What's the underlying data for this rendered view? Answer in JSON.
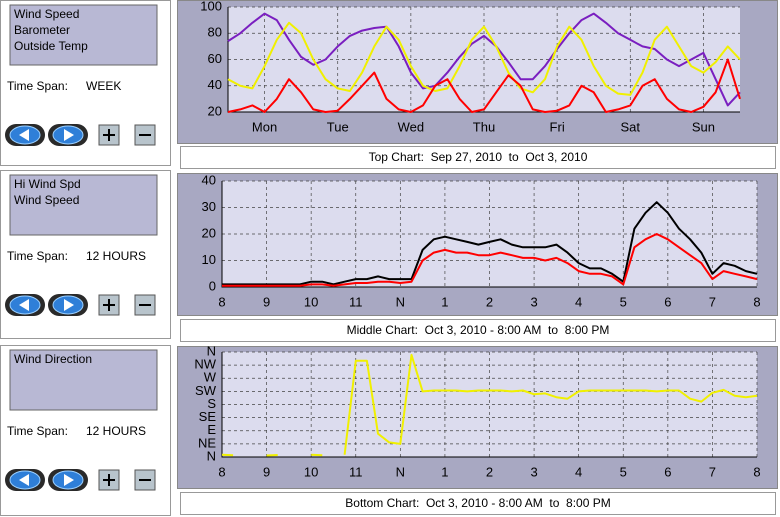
{
  "panels": [
    {
      "items": [
        "Wind Speed",
        "Barometer",
        "Outside Temp"
      ],
      "time_span_label": "Time Span:",
      "time_span": "WEEK"
    },
    {
      "items": [
        "Hi Wind Spd",
        "Wind Speed"
      ],
      "time_span_label": "Time Span:",
      "time_span": "12 HOURS"
    },
    {
      "items": [
        "Wind Direction"
      ],
      "time_span_label": "Time Span:",
      "time_span": "12 HOURS"
    }
  ],
  "chart_data": [
    {
      "type": "line",
      "title": "Top Chart:  Sep 27, 2010  to  Oct 3, 2010",
      "x": [
        0,
        4,
        8,
        12,
        16,
        20,
        24,
        28,
        32,
        36,
        40,
        44,
        48,
        52,
        56,
        60,
        64,
        68,
        72,
        76,
        80,
        84,
        88,
        92,
        96,
        100,
        104,
        108,
        112,
        116,
        120,
        124,
        128,
        132,
        136,
        140,
        144,
        148,
        152,
        156,
        160,
        164,
        168
      ],
      "xlim": [
        0,
        168
      ],
      "xticks": [
        {
          "value": 12,
          "label": "Mon"
        },
        {
          "value": 36,
          "label": "Tue"
        },
        {
          "value": 60,
          "label": "Wed"
        },
        {
          "value": 84,
          "label": "Thu"
        },
        {
          "value": 108,
          "label": "Fri"
        },
        {
          "value": 132,
          "label": "Sat"
        },
        {
          "value": 156,
          "label": "Sun"
        }
      ],
      "ylim": [
        20,
        100
      ],
      "yticks": [
        20,
        40,
        60,
        80,
        100
      ],
      "grid": true,
      "series": [
        {
          "name": "Barometer",
          "color": "#7a1fc0",
          "values": [
            74,
            80,
            88,
            95,
            90,
            75,
            62,
            56,
            60,
            70,
            78,
            82,
            84,
            85,
            70,
            50,
            38,
            40,
            50,
            62,
            72,
            78,
            70,
            58,
            45,
            45,
            55,
            68,
            80,
            90,
            95,
            88,
            80,
            75,
            70,
            68,
            60,
            55,
            60,
            65,
            45,
            25,
            35
          ]
        },
        {
          "name": "Outside Temp",
          "color": "#f0f000",
          "values": [
            45,
            40,
            38,
            55,
            75,
            88,
            80,
            60,
            45,
            38,
            36,
            50,
            70,
            85,
            75,
            55,
            40,
            36,
            38,
            55,
            75,
            85,
            70,
            50,
            38,
            35,
            45,
            70,
            85,
            75,
            55,
            40,
            34,
            33,
            50,
            75,
            85,
            70,
            55,
            50,
            58,
            70,
            60
          ]
        },
        {
          "name": "Wind Speed",
          "color": "#ff0000",
          "values": [
            20,
            22,
            25,
            20,
            30,
            45,
            35,
            22,
            20,
            21,
            30,
            40,
            50,
            30,
            22,
            20,
            25,
            40,
            45,
            30,
            20,
            22,
            35,
            48,
            40,
            22,
            20,
            21,
            25,
            40,
            35,
            20,
            22,
            25,
            40,
            45,
            30,
            22,
            20,
            24,
            35,
            60,
            30
          ]
        }
      ]
    },
    {
      "type": "line",
      "title": "Middle Chart:  Oct 3, 2010 - 8:00 AM  to  8:00 PM",
      "x": [
        8,
        8.25,
        8.5,
        8.75,
        9,
        9.25,
        9.5,
        9.75,
        10,
        10.25,
        10.5,
        10.75,
        11,
        11.25,
        11.5,
        11.75,
        12,
        12.25,
        12.5,
        12.75,
        13,
        13.25,
        13.5,
        13.75,
        14,
        14.25,
        14.5,
        14.75,
        15,
        15.25,
        15.5,
        15.75,
        16,
        16.25,
        16.5,
        16.75,
        17,
        17.25,
        17.5,
        17.75,
        18,
        18.25,
        18.5,
        18.75,
        19,
        19.25,
        19.5,
        19.75,
        20
      ],
      "xlim": [
        8,
        20
      ],
      "xticks": [
        8,
        9,
        10,
        11,
        {
          "value": 12,
          "label": "N"
        },
        {
          "value": 13,
          "label": "1"
        },
        {
          "value": 14,
          "label": "2"
        },
        {
          "value": 15,
          "label": "3"
        },
        {
          "value": 16,
          "label": "4"
        },
        {
          "value": 17,
          "label": "5"
        },
        {
          "value": 18,
          "label": "6"
        },
        {
          "value": 19,
          "label": "7"
        },
        {
          "value": 20,
          "label": "8"
        }
      ],
      "ylim": [
        0,
        40
      ],
      "yticks": [
        0,
        10,
        20,
        30,
        40
      ],
      "grid": true,
      "series": [
        {
          "name": "Hi Wind Spd",
          "color": "#000000",
          "values": [
            1,
            1,
            1,
            1,
            1,
            1,
            1,
            1,
            2,
            2,
            1,
            2,
            3,
            3,
            4,
            3,
            3,
            3,
            14,
            18,
            19,
            18,
            17,
            16,
            17,
            18,
            16,
            15,
            15,
            15,
            16,
            13,
            9,
            7,
            7,
            5,
            2,
            22,
            28,
            32,
            28,
            22,
            18,
            13,
            5,
            9,
            8,
            6,
            5
          ]
        },
        {
          "name": "Wind Speed",
          "color": "#ff0000",
          "values": [
            0.5,
            0.5,
            0.5,
            0.5,
            0.5,
            0.5,
            0.5,
            0.5,
            1,
            1,
            0.5,
            1,
            1.5,
            1.5,
            2,
            2,
            1.5,
            2,
            10,
            13,
            14,
            13,
            13,
            12,
            12,
            13,
            12,
            11,
            11,
            10,
            11,
            9,
            6,
            5,
            5,
            4,
            1,
            15,
            18,
            20,
            18,
            15,
            12,
            9,
            3,
            6,
            5,
            4,
            3
          ]
        }
      ]
    },
    {
      "type": "line",
      "title": "Bottom Chart:  Oct 3, 2010 - 8:00 AM  to  8:00 PM",
      "x": [
        8,
        8.25,
        8.5,
        8.75,
        9,
        9.25,
        9.5,
        9.75,
        10,
        10.25,
        10.5,
        10.75,
        11,
        11.25,
        11.5,
        11.75,
        12,
        12.25,
        12.5,
        12.75,
        13,
        13.25,
        13.5,
        13.75,
        14,
        14.25,
        14.5,
        14.75,
        15,
        15.25,
        15.5,
        15.75,
        16,
        16.25,
        16.5,
        16.75,
        17,
        17.25,
        17.5,
        17.75,
        18,
        18.25,
        18.5,
        18.75,
        19,
        19.25,
        19.5,
        19.75,
        20
      ],
      "xlim": [
        8,
        20
      ],
      "xticks": [
        8,
        9,
        10,
        11,
        {
          "value": 12,
          "label": "N"
        },
        {
          "value": 13,
          "label": "1"
        },
        {
          "value": 14,
          "label": "2"
        },
        {
          "value": 15,
          "label": "3"
        },
        {
          "value": 16,
          "label": "4"
        },
        {
          "value": 17,
          "label": "5"
        },
        {
          "value": 18,
          "label": "6"
        },
        {
          "value": 19,
          "label": "7"
        },
        {
          "value": 20,
          "label": "8"
        }
      ],
      "ylim": [
        0,
        360
      ],
      "yticks": [
        {
          "value": 0,
          "label": "N"
        },
        {
          "value": 45,
          "label": "NE"
        },
        {
          "value": 90,
          "label": "E"
        },
        {
          "value": 135,
          "label": "SE"
        },
        {
          "value": 180,
          "label": "S"
        },
        {
          "value": 225,
          "label": "SW"
        },
        {
          "value": 270,
          "label": "W"
        },
        {
          "value": 315,
          "label": "NW"
        },
        {
          "value": 360,
          "label": "N"
        }
      ],
      "grid": true,
      "series": [
        {
          "name": "Wind Direction",
          "color": "#f0f000",
          "values": [
            8,
            6,
            null,
            null,
            5,
            7,
            null,
            null,
            8,
            6,
            null,
            8,
            330,
            330,
            80,
            50,
            45,
            350,
            225,
            228,
            228,
            228,
            225,
            228,
            228,
            228,
            225,
            228,
            215,
            218,
            205,
            200,
            225,
            228,
            228,
            228,
            228,
            228,
            228,
            225,
            228,
            228,
            200,
            190,
            220,
            230,
            210,
            205,
            210
          ]
        }
      ]
    }
  ]
}
